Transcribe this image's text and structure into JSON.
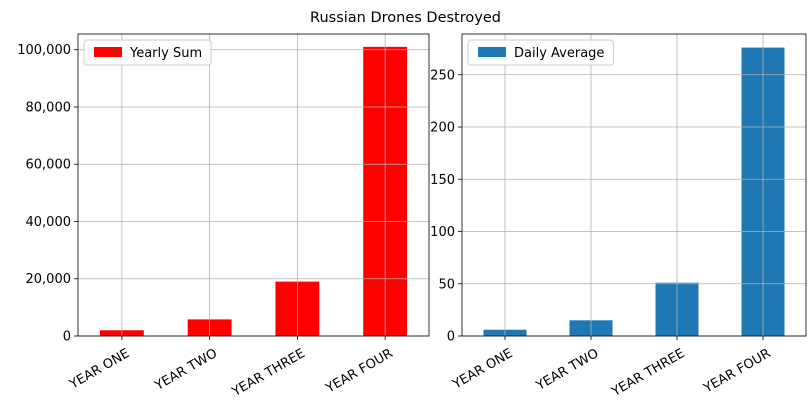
{
  "figure": {
    "title": "Russian Drones Destroyed"
  },
  "chart_data": [
    {
      "type": "bar",
      "categories": [
        "YEAR ONE",
        "YEAR TWO",
        "YEAR THREE",
        "YEAR FOUR"
      ],
      "series": [
        {
          "name": "Yearly Sum",
          "values": [
            2000,
            5800,
            19000,
            101000
          ],
          "color": "#ff0000"
        }
      ],
      "ylim": [
        0,
        105500
      ],
      "yticks": [
        0,
        20000,
        40000,
        60000,
        80000,
        100000
      ],
      "ytick_labels": [
        "0",
        "20,000",
        "40,000",
        "60,000",
        "80,000",
        "100,000"
      ],
      "grid": true,
      "legend": "top-left",
      "xlabel": "",
      "ylabel": ""
    },
    {
      "type": "bar",
      "categories": [
        "YEAR ONE",
        "YEAR TWO",
        "YEAR THREE",
        "YEAR FOUR"
      ],
      "series": [
        {
          "name": "Daily Average",
          "values": [
            6,
            15,
            51,
            276
          ],
          "color": "#1f77b4"
        }
      ],
      "ylim": [
        0,
        289
      ],
      "yticks": [
        0,
        50,
        100,
        150,
        200,
        250
      ],
      "ytick_labels": [
        "0",
        "50",
        "100",
        "150",
        "200",
        "250"
      ],
      "grid": true,
      "legend": "top-left",
      "xlabel": "",
      "ylabel": ""
    }
  ]
}
